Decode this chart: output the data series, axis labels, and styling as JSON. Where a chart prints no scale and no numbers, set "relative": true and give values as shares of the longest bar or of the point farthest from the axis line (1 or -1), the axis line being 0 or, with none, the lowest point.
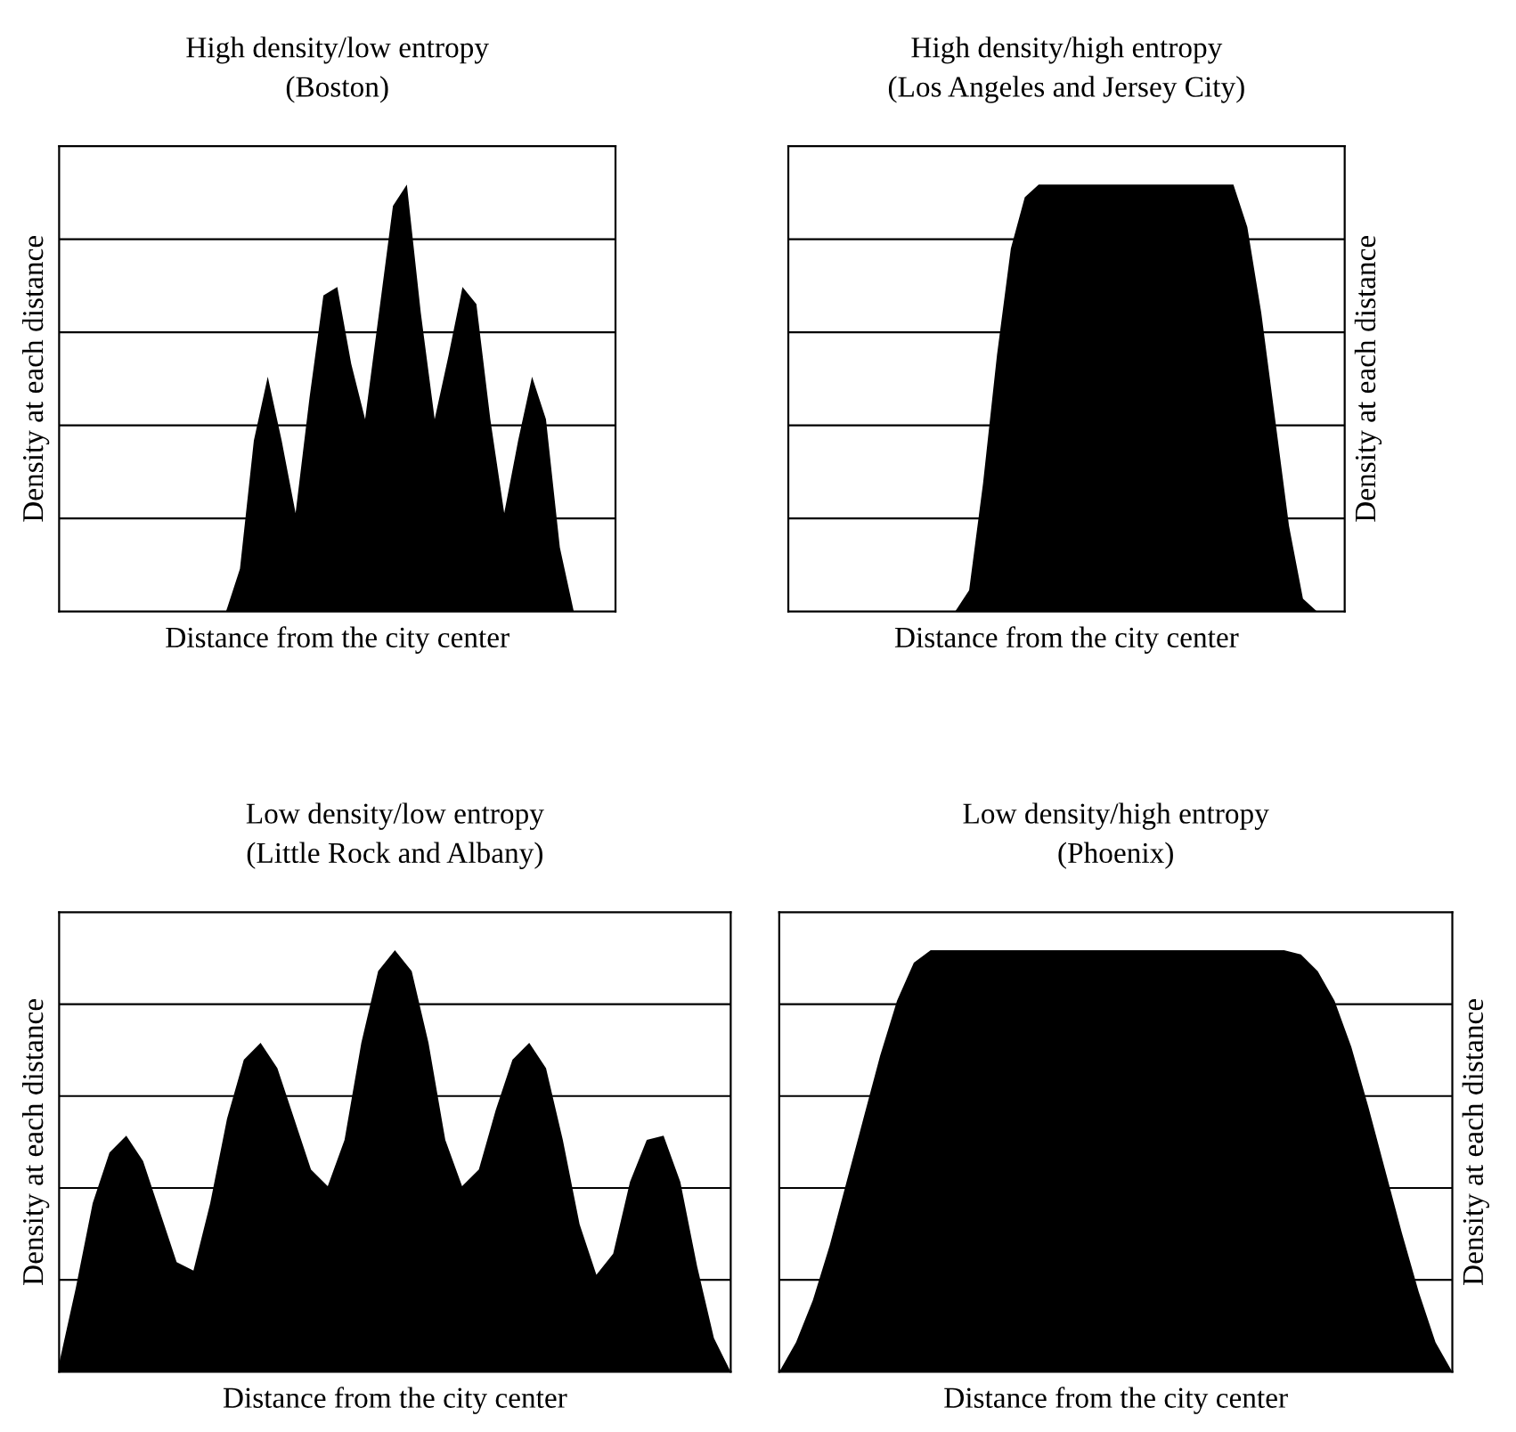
{
  "chart_data": [
    {
      "type": "area",
      "title": "High density/low entropy\n(Boston)",
      "xlabel": "Distance from the city center",
      "ylabel": "Density at each distance",
      "relative": true,
      "grid": "y",
      "tick_labels": false,
      "categories": [
        null,
        null,
        null,
        null,
        null,
        null,
        null,
        null,
        null,
        null,
        null,
        null,
        null,
        null,
        null,
        null,
        null,
        null,
        null,
        null,
        null,
        null,
        null,
        null,
        null,
        null,
        null,
        null,
        null,
        null,
        null,
        null,
        null,
        null,
        null,
        null,
        null,
        null,
        null,
        null,
        null
      ],
      "series": [
        {
          "color": "#000000",
          "values": [
            0,
            0,
            0,
            0,
            0,
            0,
            0,
            0,
            0,
            0,
            0,
            0,
            0,
            0.1,
            0.4,
            0.55,
            0.4,
            0.23,
            0.5,
            0.74,
            0.76,
            0.58,
            0.45,
            0.7,
            0.95,
            1,
            0.7,
            0.45,
            0.6,
            0.76,
            0.72,
            0.45,
            0.23,
            0.4,
            0.55,
            0.45,
            0.15,
            0,
            0,
            0,
            0
          ]
        }
      ]
    },
    {
      "type": "area",
      "title": "High density/high entropy\n(Los Angeles and Jersey City)",
      "xlabel": "Distance from the city center",
      "ylabel": "Density at each distance",
      "relative": true,
      "grid": "y",
      "tick_labels": false,
      "categories": [
        null,
        null,
        null,
        null,
        null,
        null,
        null,
        null,
        null,
        null,
        null,
        null,
        null,
        null,
        null,
        null,
        null,
        null,
        null,
        null,
        null,
        null,
        null,
        null,
        null,
        null,
        null,
        null,
        null,
        null,
        null,
        null,
        null,
        null,
        null,
        null,
        null,
        null,
        null,
        null,
        null
      ],
      "series": [
        {
          "color": "#000000",
          "values": [
            0,
            0,
            0,
            0,
            0,
            0,
            0,
            0,
            0,
            0,
            0,
            0,
            0,
            0.05,
            0.3,
            0.6,
            0.85,
            0.97,
            1,
            1,
            1,
            1,
            1,
            1,
            1,
            1,
            1,
            1,
            1,
            1,
            1,
            1,
            1,
            0.9,
            0.7,
            0.45,
            0.2,
            0.03,
            0,
            0,
            0
          ]
        }
      ]
    },
    {
      "type": "area",
      "title": "Low density/low entropy\n(Little Rock and Albany)",
      "xlabel": "Distance from the city center",
      "ylabel": "Density at each distance",
      "relative": true,
      "grid": "y",
      "tick_labels": false,
      "categories": [
        null,
        null,
        null,
        null,
        null,
        null,
        null,
        null,
        null,
        null,
        null,
        null,
        null,
        null,
        null,
        null,
        null,
        null,
        null,
        null,
        null,
        null,
        null,
        null,
        null,
        null,
        null,
        null,
        null,
        null,
        null,
        null,
        null,
        null,
        null,
        null,
        null,
        null,
        null,
        null,
        null
      ],
      "series": [
        {
          "color": "#000000",
          "values": [
            0.02,
            0.2,
            0.4,
            0.52,
            0.56,
            0.5,
            0.38,
            0.26,
            0.24,
            0.4,
            0.6,
            0.74,
            0.78,
            0.72,
            0.6,
            0.48,
            0.44,
            0.55,
            0.78,
            0.95,
            1,
            0.95,
            0.78,
            0.55,
            0.44,
            0.48,
            0.62,
            0.74,
            0.78,
            0.72,
            0.55,
            0.35,
            0.23,
            0.28,
            0.45,
            0.55,
            0.56,
            0.45,
            0.25,
            0.08,
            0
          ]
        }
      ]
    },
    {
      "type": "area",
      "title": "Low density/high entropy\n(Phoenix)",
      "xlabel": "Distance from the city center",
      "ylabel": "Density at each distance",
      "relative": true,
      "grid": "y",
      "tick_labels": false,
      "categories": [
        null,
        null,
        null,
        null,
        null,
        null,
        null,
        null,
        null,
        null,
        null,
        null,
        null,
        null,
        null,
        null,
        null,
        null,
        null,
        null,
        null,
        null,
        null,
        null,
        null,
        null,
        null,
        null,
        null,
        null,
        null,
        null,
        null,
        null,
        null,
        null,
        null,
        null,
        null,
        null,
        null
      ],
      "series": [
        {
          "color": "#000000",
          "values": [
            0,
            0.07,
            0.17,
            0.3,
            0.45,
            0.6,
            0.75,
            0.88,
            0.97,
            1,
            1,
            1,
            1,
            1,
            1,
            1,
            1,
            1,
            1,
            1,
            1,
            1,
            1,
            1,
            1,
            1,
            1,
            1,
            1,
            1,
            1,
            0.99,
            0.95,
            0.88,
            0.77,
            0.63,
            0.48,
            0.33,
            0.19,
            0.07,
            0
          ]
        }
      ]
    }
  ]
}
